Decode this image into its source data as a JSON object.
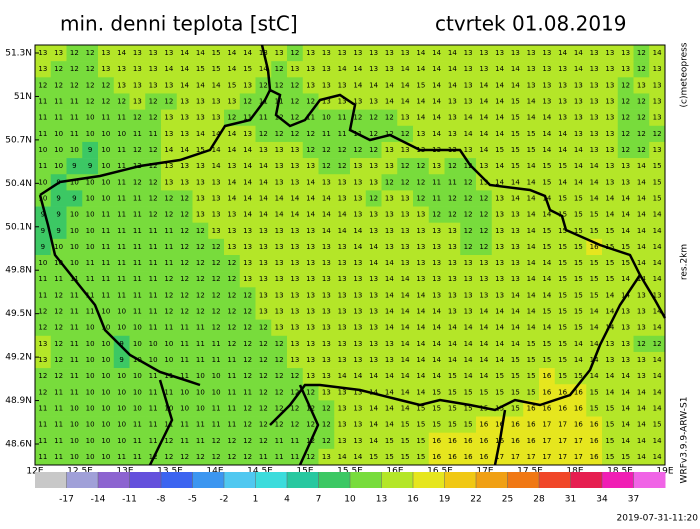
{
  "header": {
    "title": "min. denni teplota [stC]",
    "date": "ctvrtek 01.08.2019"
  },
  "credits": {
    "copyright": "(c)meteopress",
    "resolution": "res.2km",
    "model": "WRFv3.9.9-ARW-S1",
    "run": "2019-07-31-11:20"
  },
  "lat_labels": [
    "51.3N",
    "51N",
    "50.7N",
    "50.4N",
    "50.1N",
    "49.8N",
    "49.5N",
    "49.2N",
    "48.9N",
    "48.6N"
  ],
  "lon_labels": [
    "12E",
    "12.5E",
    "13E",
    "13.5E",
    "14E",
    "14.5E",
    "15E",
    "15.5E",
    "16E",
    "16.5E",
    "17E",
    "17.5E",
    "18E",
    "18.5E",
    "19E"
  ],
  "colorbar": {
    "labels": [
      -17,
      -14,
      -11,
      -8,
      -5,
      -2,
      1,
      4,
      7,
      10,
      13,
      16,
      19,
      22,
      25,
      28,
      31,
      34,
      37
    ],
    "colors": [
      "#c8c8c8",
      "#a0a0d8",
      "#8c64d0",
      "#6450dc",
      "#3c64f0",
      "#3c96f0",
      "#50c8f0",
      "#3cdcdc",
      "#28c8a0",
      "#3cc864",
      "#78dc3c",
      "#b4e628",
      "#e6e61e",
      "#f0c814",
      "#f0a014",
      "#f07814",
      "#f04628",
      "#e61e50",
      "#f01eb4",
      "#f064e6"
    ]
  },
  "grid": [
    [
      13,
      13,
      12,
      12,
      13,
      14,
      13,
      13,
      13,
      14,
      14,
      15,
      14,
      14,
      13,
      13,
      12,
      13,
      13,
      13,
      13,
      13,
      13,
      13,
      14,
      14,
      14,
      13,
      13,
      13,
      13,
      13,
      13,
      14,
      14,
      13,
      13,
      13,
      12,
      14
    ],
    [
      13,
      12,
      12,
      12,
      13,
      13,
      13,
      13,
      14,
      14,
      15,
      15,
      14,
      15,
      14,
      12,
      13,
      13,
      13,
      14,
      14,
      13,
      13,
      14,
      14,
      14,
      14,
      13,
      13,
      14,
      14,
      13,
      13,
      13,
      14,
      13,
      13,
      13,
      12,
      13
    ],
    [
      12,
      12,
      12,
      12,
      12,
      13,
      13,
      13,
      13,
      14,
      14,
      14,
      15,
      13,
      12,
      12,
      12,
      13,
      13,
      13,
      14,
      14,
      14,
      14,
      15,
      14,
      14,
      13,
      14,
      14,
      14,
      13,
      13,
      13,
      13,
      13,
      13,
      12,
      13,
      13
    ],
    [
      11,
      11,
      11,
      12,
      12,
      12,
      13,
      12,
      12,
      13,
      13,
      13,
      13,
      12,
      11,
      11,
      12,
      12,
      13,
      13,
      13,
      13,
      14,
      14,
      14,
      14,
      13,
      13,
      14,
      14,
      15,
      14,
      13,
      13,
      13,
      13,
      13,
      12,
      12,
      13
    ],
    [
      11,
      11,
      11,
      10,
      11,
      11,
      12,
      12,
      13,
      13,
      13,
      13,
      12,
      11,
      11,
      12,
      12,
      11,
      10,
      11,
      12,
      12,
      12,
      13,
      14,
      14,
      13,
      14,
      14,
      14,
      15,
      14,
      14,
      13,
      13,
      13,
      13,
      12,
      12,
      13
    ],
    [
      11,
      10,
      11,
      10,
      10,
      10,
      11,
      11,
      13,
      13,
      14,
      14,
      14,
      13,
      12,
      12,
      12,
      12,
      11,
      11,
      11,
      12,
      12,
      12,
      13,
      14,
      13,
      14,
      14,
      14,
      15,
      15,
      14,
      14,
      13,
      13,
      13,
      12,
      12,
      12
    ],
    [
      10,
      10,
      10,
      9,
      10,
      11,
      12,
      12,
      14,
      14,
      15,
      14,
      14,
      14,
      13,
      13,
      13,
      12,
      12,
      12,
      12,
      12,
      13,
      13,
      13,
      13,
      13,
      13,
      14,
      15,
      15,
      15,
      14,
      14,
      14,
      13,
      13,
      12,
      12,
      13
    ],
    [
      11,
      10,
      9,
      9,
      10,
      11,
      12,
      12,
      13,
      13,
      13,
      14,
      13,
      14,
      14,
      13,
      13,
      13,
      12,
      12,
      13,
      13,
      13,
      12,
      12,
      13,
      12,
      12,
      13,
      14,
      15,
      14,
      15,
      15,
      14,
      14,
      13,
      13,
      14,
      15
    ],
    [
      10,
      9,
      10,
      10,
      10,
      11,
      12,
      12,
      13,
      13,
      13,
      13,
      14,
      14,
      14,
      13,
      13,
      14,
      13,
      13,
      13,
      13,
      12,
      12,
      12,
      11,
      11,
      12,
      13,
      14,
      14,
      14,
      15,
      14,
      14,
      14,
      13,
      13,
      14,
      15
    ],
    [
      10,
      9,
      9,
      10,
      10,
      11,
      11,
      12,
      12,
      12,
      13,
      13,
      14,
      14,
      14,
      14,
      14,
      14,
      14,
      13,
      13,
      12,
      13,
      13,
      12,
      11,
      12,
      12,
      12,
      13,
      14,
      14,
      14,
      15,
      15,
      14,
      14,
      14,
      14,
      15
    ],
    [
      9,
      9,
      10,
      10,
      11,
      11,
      11,
      12,
      12,
      12,
      13,
      13,
      13,
      14,
      14,
      14,
      14,
      14,
      14,
      14,
      13,
      13,
      13,
      13,
      13,
      12,
      12,
      12,
      12,
      13,
      13,
      14,
      14,
      15,
      15,
      15,
      14,
      14,
      14,
      14
    ],
    [
      9,
      9,
      10,
      10,
      11,
      11,
      11,
      11,
      11,
      12,
      12,
      13,
      13,
      13,
      13,
      13,
      13,
      13,
      14,
      14,
      14,
      13,
      13,
      13,
      13,
      13,
      13,
      12,
      12,
      13,
      13,
      14,
      15,
      15,
      15,
      15,
      15,
      14,
      14,
      14
    ],
    [
      9,
      10,
      10,
      10,
      11,
      11,
      11,
      11,
      11,
      12,
      12,
      12,
      13,
      13,
      13,
      13,
      13,
      13,
      13,
      13,
      14,
      14,
      13,
      13,
      13,
      13,
      13,
      12,
      12,
      13,
      13,
      14,
      15,
      15,
      15,
      16,
      15,
      15,
      14,
      14
    ],
    [
      10,
      10,
      10,
      11,
      11,
      11,
      11,
      11,
      11,
      12,
      12,
      12,
      12,
      13,
      13,
      13,
      13,
      13,
      13,
      13,
      13,
      14,
      14,
      13,
      13,
      13,
      13,
      13,
      13,
      13,
      13,
      14,
      14,
      15,
      15,
      15,
      15,
      15,
      14,
      14
    ],
    [
      11,
      11,
      11,
      11,
      11,
      11,
      11,
      11,
      12,
      12,
      12,
      12,
      12,
      13,
      13,
      13,
      13,
      13,
      13,
      13,
      13,
      13,
      14,
      14,
      13,
      13,
      13,
      13,
      13,
      13,
      13,
      14,
      14,
      15,
      15,
      15,
      15,
      14,
      14,
      14
    ],
    [
      11,
      12,
      11,
      11,
      11,
      11,
      11,
      11,
      12,
      12,
      12,
      12,
      12,
      12,
      13,
      13,
      13,
      13,
      13,
      13,
      13,
      13,
      14,
      14,
      14,
      13,
      13,
      13,
      13,
      13,
      14,
      14,
      14,
      15,
      15,
      15,
      14,
      14,
      13,
      13
    ],
    [
      12,
      12,
      11,
      11,
      10,
      10,
      11,
      11,
      12,
      12,
      12,
      12,
      12,
      12,
      13,
      13,
      13,
      13,
      13,
      13,
      13,
      13,
      14,
      14,
      14,
      14,
      13,
      13,
      14,
      14,
      14,
      14,
      15,
      15,
      15,
      14,
      14,
      13,
      13,
      14
    ],
    [
      12,
      12,
      11,
      10,
      10,
      10,
      10,
      11,
      11,
      11,
      11,
      12,
      12,
      12,
      12,
      13,
      13,
      13,
      13,
      13,
      13,
      13,
      14,
      14,
      14,
      14,
      14,
      14,
      14,
      14,
      14,
      14,
      14,
      15,
      15,
      14,
      14,
      13,
      13,
      14
    ],
    [
      13,
      12,
      11,
      10,
      10,
      9,
      10,
      10,
      10,
      11,
      11,
      11,
      12,
      12,
      12,
      12,
      13,
      13,
      13,
      13,
      13,
      13,
      13,
      14,
      14,
      14,
      14,
      14,
      14,
      14,
      14,
      15,
      15,
      15,
      14,
      14,
      13,
      13,
      12,
      12
    ],
    [
      13,
      12,
      11,
      10,
      10,
      9,
      10,
      10,
      10,
      11,
      11,
      11,
      11,
      12,
      12,
      12,
      13,
      13,
      13,
      13,
      13,
      13,
      13,
      14,
      14,
      14,
      14,
      14,
      14,
      14,
      15,
      15,
      15,
      15,
      14,
      14,
      13,
      13,
      13,
      14
    ],
    [
      12,
      12,
      11,
      10,
      10,
      10,
      10,
      11,
      11,
      11,
      10,
      10,
      11,
      12,
      12,
      12,
      12,
      13,
      13,
      14,
      14,
      14,
      14,
      14,
      14,
      14,
      15,
      14,
      14,
      15,
      15,
      15,
      16,
      15,
      15,
      14,
      14,
      14,
      13,
      14
    ],
    [
      12,
      11,
      11,
      10,
      10,
      10,
      10,
      11,
      11,
      10,
      10,
      10,
      11,
      11,
      12,
      12,
      12,
      12,
      13,
      13,
      13,
      14,
      14,
      14,
      14,
      15,
      15,
      15,
      15,
      15,
      15,
      15,
      16,
      16,
      16,
      15,
      14,
      14,
      14,
      14
    ],
    [
      11,
      11,
      10,
      10,
      10,
      10,
      10,
      11,
      10,
      10,
      10,
      11,
      11,
      12,
      12,
      12,
      12,
      12,
      12,
      13,
      13,
      14,
      14,
      14,
      15,
      15,
      15,
      15,
      15,
      15,
      15,
      16,
      16,
      16,
      16,
      15,
      15,
      14,
      14,
      14
    ],
    [
      11,
      11,
      10,
      10,
      10,
      10,
      11,
      11,
      11,
      11,
      11,
      11,
      11,
      12,
      12,
      12,
      12,
      12,
      12,
      13,
      13,
      14,
      14,
      15,
      15,
      15,
      15,
      15,
      16,
      16,
      16,
      16,
      17,
      17,
      16,
      16,
      15,
      14,
      14,
      15
    ],
    [
      11,
      11,
      10,
      10,
      10,
      10,
      11,
      11,
      12,
      11,
      11,
      12,
      12,
      12,
      12,
      11,
      11,
      12,
      12,
      13,
      13,
      14,
      15,
      15,
      15,
      16,
      16,
      16,
      16,
      16,
      16,
      16,
      17,
      17,
      17,
      16,
      15,
      14,
      14,
      14
    ],
    [
      11,
      11,
      10,
      10,
      10,
      11,
      11,
      12,
      12,
      12,
      12,
      12,
      12,
      12,
      11,
      11,
      11,
      12,
      13,
      14,
      14,
      15,
      15,
      15,
      15,
      16,
      16,
      16,
      16,
      17,
      17,
      17,
      17,
      17,
      17,
      16,
      15,
      15,
      14,
      14
    ]
  ]
}
